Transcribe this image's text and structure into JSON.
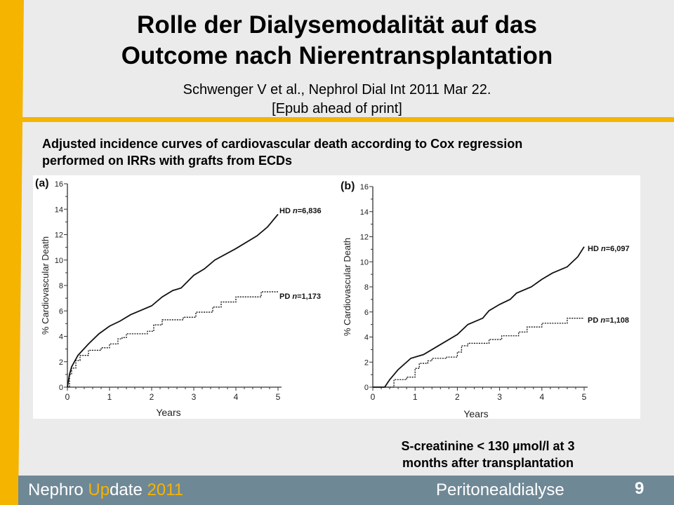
{
  "slide": {
    "title_line1": "Rolle der Dialysemodalität auf das",
    "title_line2": "Outcome nach Nierentransplantation",
    "subtitle_line1": "Schwenger V et al., Nephrol Dial Int 2011 Mar 22.",
    "subtitle_line2": "[Epub ahead of print]",
    "caption_line1": "Adjusted incidence curves of cardiovascular death according to Cox regression",
    "caption_line2": "performed on IRRs with grafts from ECDs",
    "note_line1": "S-creatinine < 130 µmol/l at 3",
    "note_line2": "months after transplantation"
  },
  "footer": {
    "brand_part1": "Nephro ",
    "brand_part2": "Up",
    "brand_part3": "date ",
    "brand_year": "2011",
    "topic": "Peritonealdialyse",
    "page_number": "9"
  },
  "colors": {
    "accent": "#f5b400",
    "footer_bg": "#6f8896",
    "background": "#ebebeb"
  },
  "chart_data": [
    {
      "type": "line",
      "panel_label": "(a)",
      "xlabel": "Years",
      "ylabel": "% Cardiovascular Death",
      "xlim": [
        0,
        5
      ],
      "ylim": [
        0,
        16
      ],
      "xticks": [
        "0",
        "1",
        "2",
        "3",
        "4",
        "5"
      ],
      "yticks": [
        "0",
        "2",
        "4",
        "6",
        "8",
        "10",
        "12",
        "14",
        "16"
      ],
      "grid": false,
      "series": [
        {
          "name": "HD",
          "n": "6,836",
          "style": "solid",
          "x": [
            0,
            0.05,
            0.1,
            0.25,
            0.5,
            0.75,
            1,
            1.25,
            1.5,
            2,
            2.25,
            2.5,
            2.7,
            3,
            3.25,
            3.5,
            4,
            4.5,
            4.75,
            5
          ],
          "y": [
            0,
            1,
            1.6,
            2.5,
            3.4,
            4.2,
            4.8,
            5.2,
            5.7,
            6.4,
            7.1,
            7.6,
            7.8,
            8.8,
            9.3,
            10,
            10.9,
            11.9,
            12.6,
            13.6
          ]
        },
        {
          "name": "PD",
          "n": "1,173",
          "style": "dotted-step",
          "x": [
            0,
            0.05,
            0.1,
            0.2,
            0.3,
            0.5,
            0.8,
            1,
            1.2,
            1.3,
            1.4,
            1.9,
            2.05,
            2.25,
            2.75,
            3.05,
            3.45,
            3.65,
            4,
            4.6,
            5
          ],
          "y": [
            0,
            1,
            1.5,
            2.1,
            2.5,
            2.9,
            3.1,
            3.4,
            3.8,
            3.9,
            4.2,
            4.4,
            4.9,
            5.3,
            5.5,
            5.9,
            6.3,
            6.7,
            7.1,
            7.5,
            7.5
          ]
        }
      ]
    },
    {
      "type": "line",
      "panel_label": "(b)",
      "xlabel": "Years",
      "ylabel": "% Cardiovascular Death",
      "xlim": [
        0,
        5
      ],
      "ylim": [
        0,
        16
      ],
      "xticks": [
        "0",
        "1",
        "2",
        "3",
        "4",
        "5"
      ],
      "yticks": [
        "0",
        "2",
        "4",
        "6",
        "8",
        "10",
        "12",
        "14",
        "16"
      ],
      "grid": false,
      "series": [
        {
          "name": "HD",
          "n": "6,097",
          "style": "solid",
          "x": [
            0,
            0.28,
            0.4,
            0.6,
            0.9,
            1.2,
            1.5,
            2,
            2.25,
            2.6,
            2.75,
            3,
            3.25,
            3.4,
            3.75,
            4,
            4.25,
            4.6,
            4.85,
            5
          ],
          "y": [
            0,
            0,
            0.6,
            1.4,
            2.3,
            2.6,
            3.2,
            4.2,
            5,
            5.5,
            6.1,
            6.6,
            7,
            7.5,
            8,
            8.6,
            9.1,
            9.6,
            10.4,
            11.2
          ]
        },
        {
          "name": "PD",
          "n": "1,108",
          "style": "dotted-step",
          "x": [
            0,
            0.35,
            0.5,
            0.8,
            1,
            1.1,
            1.3,
            1.4,
            1.75,
            2,
            2.1,
            2.25,
            2.75,
            3.05,
            3.45,
            3.65,
            4,
            4.6,
            5
          ],
          "y": [
            0,
            0,
            0.6,
            0.8,
            1.5,
            1.9,
            2.1,
            2.3,
            2.4,
            2.8,
            3.3,
            3.5,
            3.8,
            4.1,
            4.4,
            4.8,
            5.1,
            5.5,
            5.5
          ]
        }
      ]
    }
  ]
}
